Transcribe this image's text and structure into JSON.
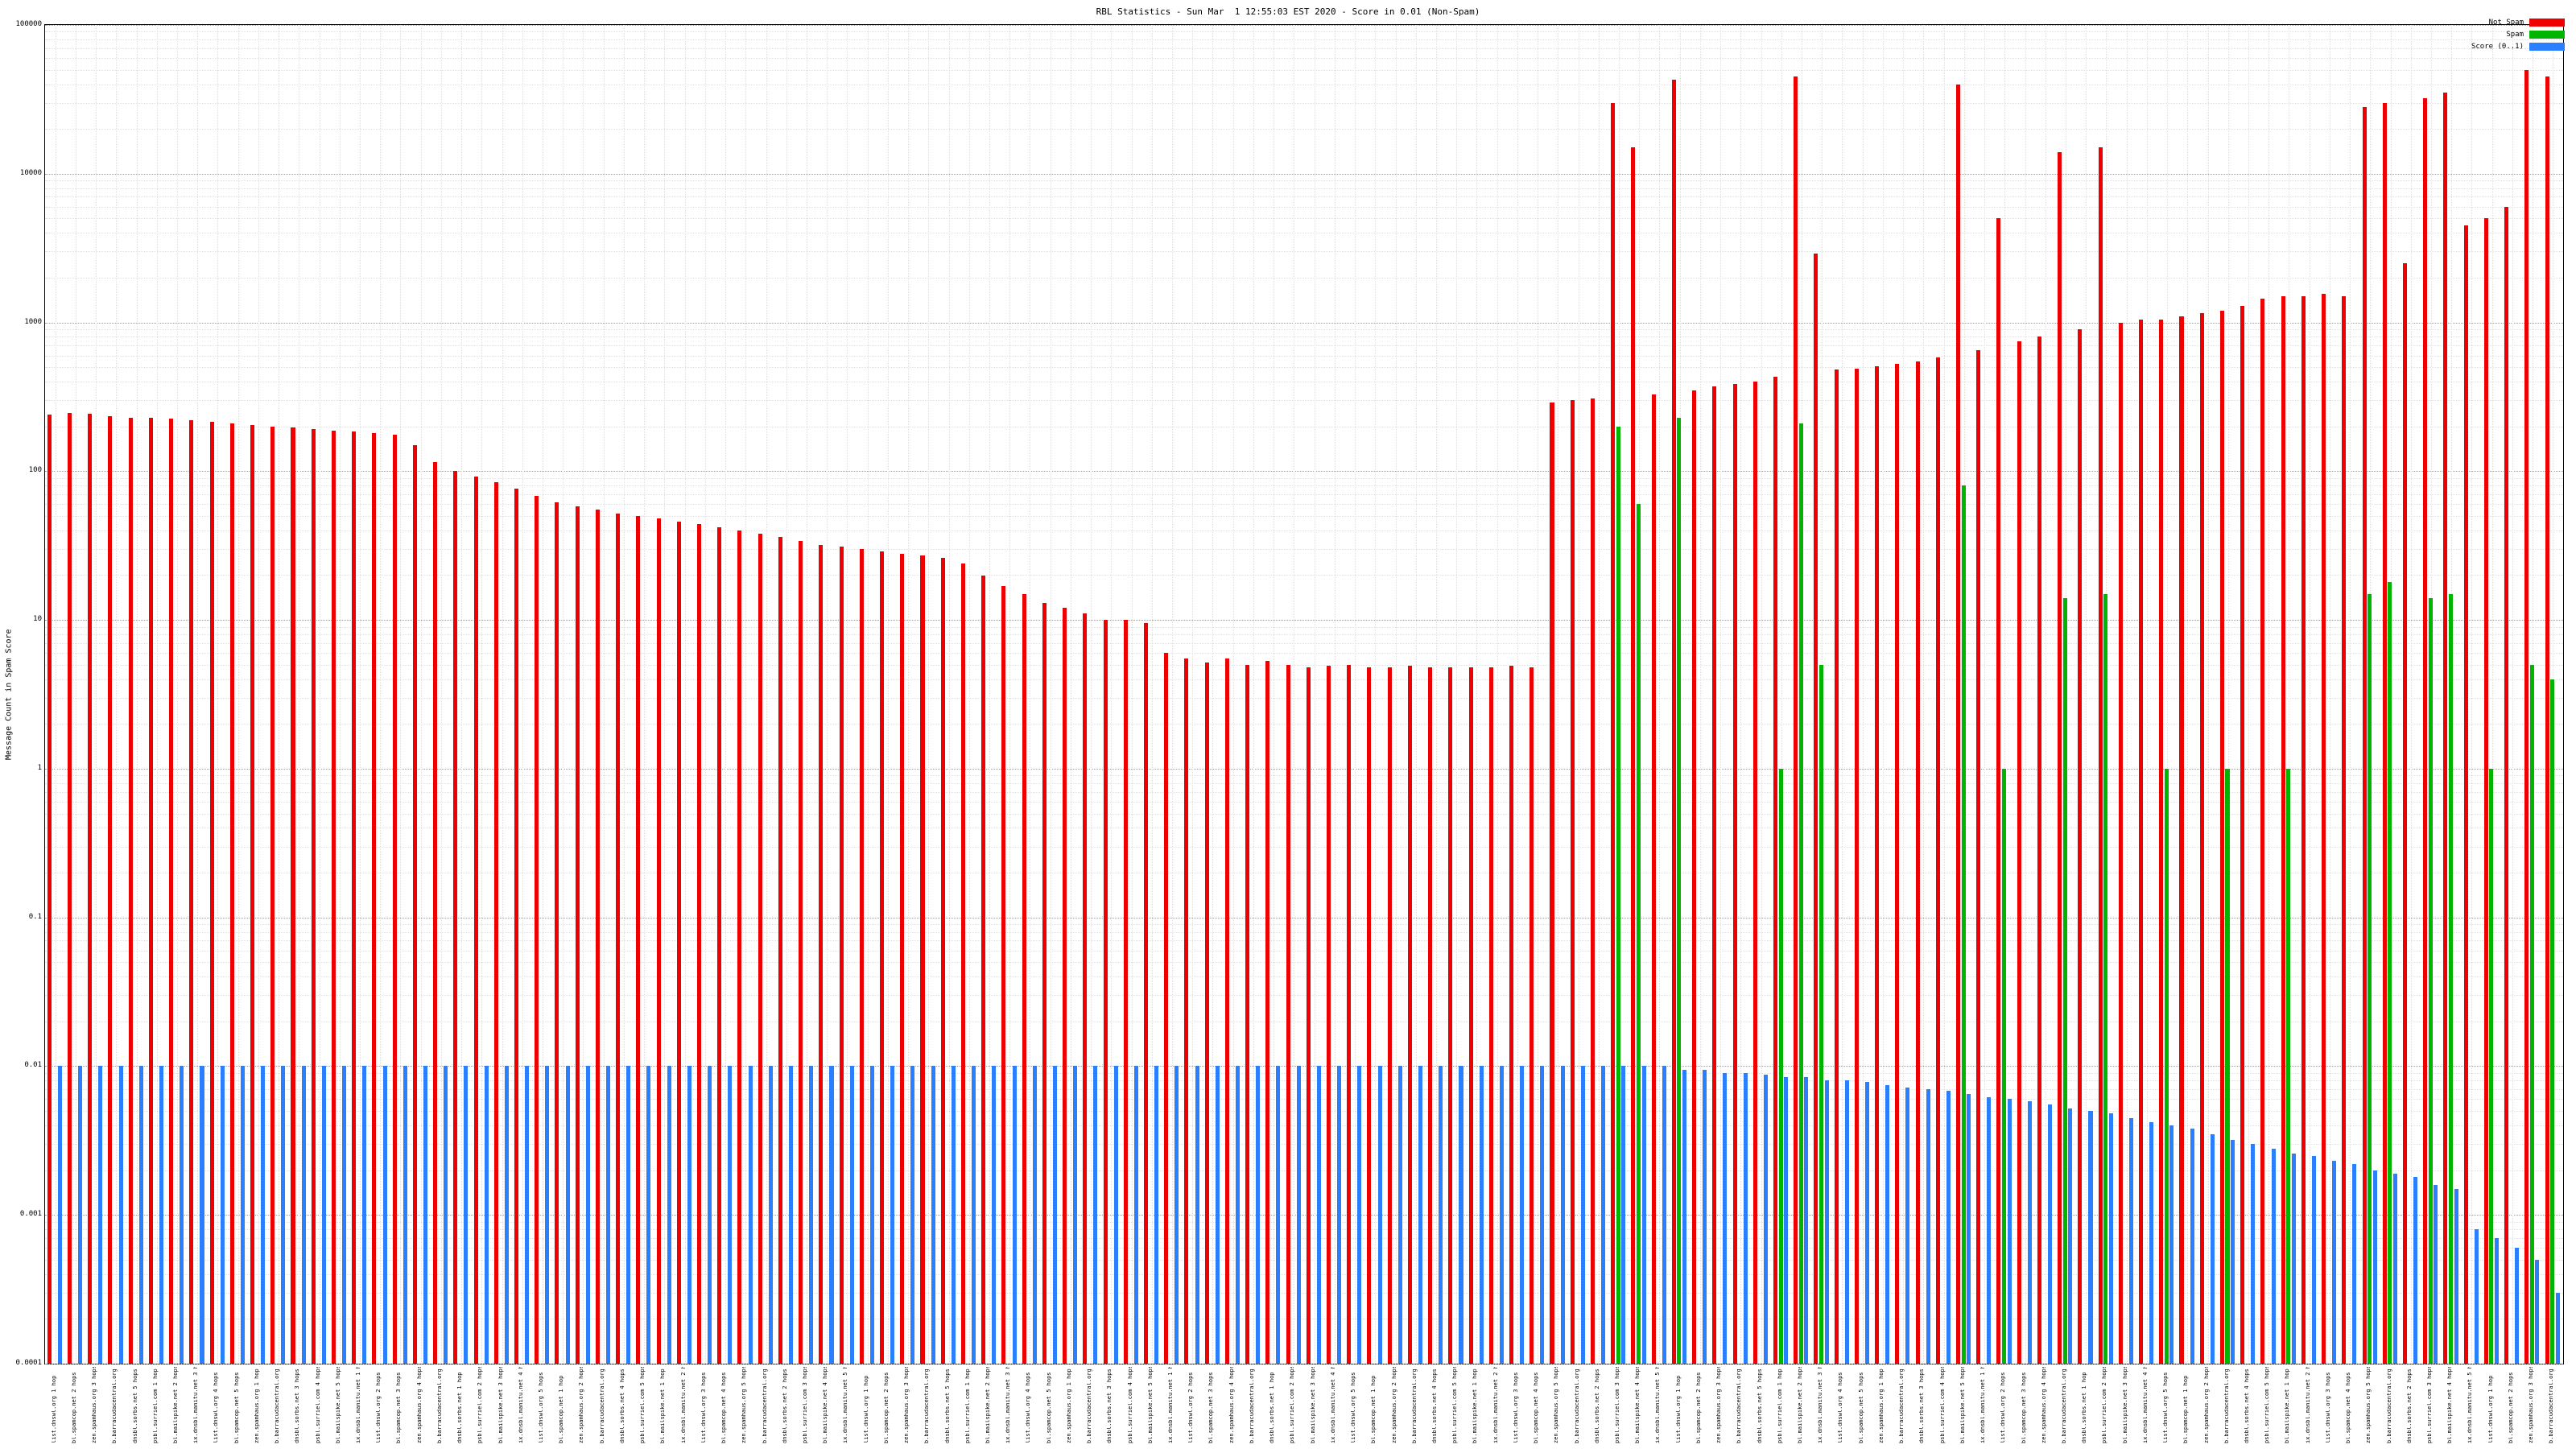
{
  "chart_data": {
    "type": "bar",
    "title": "RBL Statistics - Sun Mar  1 12:55:03 EST 2020 - Score in 0.01 (Non-Spam)",
    "ylabel": "Message Count in Spam Score",
    "xlabel": "",
    "scale": "log",
    "ylim": [
      0.0001,
      100000
    ],
    "yticks": [
      "0.0001",
      "0.001",
      "0.01",
      "0.1",
      "1",
      "10",
      "100",
      "1000",
      "10000",
      "100000"
    ],
    "grid": true,
    "legend_position": "top-right",
    "legend": [
      {
        "label": "Not Spam",
        "color": "#ee0000"
      },
      {
        "label": "Spam",
        "color": "#00b400"
      },
      {
        "label": "Score (0..1)",
        "color": "#2a7fff"
      }
    ],
    "categories": [
      "list.dnswl.org 1 hop",
      "bl.spamcop.net 2 hops",
      "zen.spamhaus.org 3 hops",
      "b.barracudacentral.org 4 hops",
      "dnsbl.sorbs.net 5 hops",
      "psbl.surriel.com 1 hop",
      "bl.mailspike.net 2 hops",
      "ix.dnsbl.manitu.net 3 hops",
      "list.dnswl.org 4 hops",
      "bl.spamcop.net 5 hops",
      "zen.spamhaus.org 1 hop",
      "b.barracudacentral.org 2 hops",
      "dnsbl.sorbs.net 3 hops",
      "psbl.surriel.com 4 hops",
      "bl.mailspike.net 5 hops",
      "ix.dnsbl.manitu.net 1 hop",
      "list.dnswl.org 2 hops",
      "bl.spamcop.net 3 hops",
      "zen.spamhaus.org 4 hops",
      "b.barracudacentral.org 5 hops",
      "dnsbl.sorbs.net 1 hop",
      "psbl.surriel.com 2 hops",
      "bl.mailspike.net 3 hops",
      "ix.dnsbl.manitu.net 4 hops",
      "list.dnswl.org 5 hops",
      "bl.spamcop.net 1 hop",
      "zen.spamhaus.org 2 hops",
      "b.barracudacentral.org 3 hops",
      "dnsbl.sorbs.net 4 hops",
      "psbl.surriel.com 5 hops",
      "bl.mailspike.net 1 hop",
      "ix.dnsbl.manitu.net 2 hops",
      "list.dnswl.org 3 hops",
      "bl.spamcop.net 4 hops",
      "zen.spamhaus.org 5 hops",
      "b.barracudacentral.org 1 hop",
      "dnsbl.sorbs.net 2 hops",
      "psbl.surriel.com 3 hops",
      "bl.mailspike.net 4 hops",
      "ix.dnsbl.manitu.net 5 hops",
      "list.dnswl.org 1 hop",
      "bl.spamcop.net 2 hops",
      "zen.spamhaus.org 3 hops",
      "b.barracudacentral.org 4 hops",
      "dnsbl.sorbs.net 5 hops",
      "psbl.surriel.com 1 hop",
      "bl.mailspike.net 2 hops",
      "ix.dnsbl.manitu.net 3 hops",
      "list.dnswl.org 4 hops",
      "bl.spamcop.net 5 hops",
      "zen.spamhaus.org 1 hop",
      "b.barracudacentral.org 2 hops",
      "dnsbl.sorbs.net 3 hops",
      "psbl.surriel.com 4 hops",
      "bl.mailspike.net 5 hops",
      "ix.dnsbl.manitu.net 1 hop",
      "list.dnswl.org 2 hops",
      "bl.spamcop.net 3 hops",
      "zen.spamhaus.org 4 hops",
      "b.barracudacentral.org 5 hops",
      "dnsbl.sorbs.net 1 hop",
      "psbl.surriel.com 2 hops",
      "bl.mailspike.net 3 hops",
      "ix.dnsbl.manitu.net 4 hops",
      "list.dnswl.org 5 hops",
      "bl.spamcop.net 1 hop",
      "zen.spamhaus.org 2 hops",
      "b.barracudacentral.org 3 hops",
      "dnsbl.sorbs.net 4 hops",
      "psbl.surriel.com 5 hops",
      "bl.mailspike.net 1 hop",
      "ix.dnsbl.manitu.net 2 hops",
      "list.dnswl.org 3 hops",
      "bl.spamcop.net 4 hops",
      "zen.spamhaus.org 5 hops",
      "b.barracudacentral.org 1 hop",
      "dnsbl.sorbs.net 2 hops",
      "psbl.surriel.com 3 hops",
      "bl.mailspike.net 4 hops",
      "ix.dnsbl.manitu.net 5 hops",
      "list.dnswl.org 1 hop",
      "bl.spamcop.net 2 hops",
      "zen.spamhaus.org 3 hops",
      "b.barracudacentral.org 4 hops",
      "dnsbl.sorbs.net 5 hops",
      "psbl.surriel.com 1 hop",
      "bl.mailspike.net 2 hops",
      "ix.dnsbl.manitu.net 3 hops",
      "list.dnswl.org 4 hops",
      "bl.spamcop.net 5 hops",
      "zen.spamhaus.org 1 hop",
      "b.barracudacentral.org 2 hops",
      "dnsbl.sorbs.net 3 hops",
      "psbl.surriel.com 4 hops",
      "bl.mailspike.net 5 hops",
      "ix.dnsbl.manitu.net 1 hop",
      "list.dnswl.org 2 hops",
      "bl.spamcop.net 3 hops",
      "zen.spamhaus.org 4 hops",
      "b.barracudacentral.org 5 hops",
      "dnsbl.sorbs.net 1 hop",
      "psbl.surriel.com 2 hops",
      "bl.mailspike.net 3 hops",
      "ix.dnsbl.manitu.net 4 hops",
      "list.dnswl.org 5 hops",
      "bl.spamcop.net 1 hop",
      "zen.spamhaus.org 2 hops",
      "b.barracudacentral.org 3 hops",
      "dnsbl.sorbs.net 4 hops",
      "psbl.surriel.com 5 hops",
      "bl.mailspike.net 1 hop",
      "ix.dnsbl.manitu.net 2 hops",
      "list.dnswl.org 3 hops",
      "bl.spamcop.net 4 hops",
      "zen.spamhaus.org 5 hops",
      "b.barracudacentral.org 1 hop",
      "dnsbl.sorbs.net 2 hops",
      "psbl.surriel.com 3 hops",
      "bl.mailspike.net 4 hops",
      "ix.dnsbl.manitu.net 5 hops",
      "list.dnswl.org 1 hop",
      "bl.spamcop.net 2 hops",
      "zen.spamhaus.org 3 hops",
      "b.barracudacentral.org 4 hops"
    ],
    "series": [
      {
        "name": "Not Spam",
        "color": "#ee0000",
        "values": [
          240,
          245,
          242,
          235,
          230,
          228,
          225,
          220,
          215,
          210,
          205,
          200,
          196,
          192,
          188,
          184,
          180,
          175,
          150,
          115,
          100,
          92,
          84,
          76,
          68,
          62,
          58,
          55,
          52,
          50,
          48,
          46,
          44,
          42,
          40,
          38,
          36,
          34,
          32,
          31,
          30,
          29,
          28,
          27,
          26,
          24,
          20,
          17,
          15,
          13,
          12,
          11,
          10,
          10,
          9.5,
          6,
          5.5,
          5.2,
          5.5,
          5,
          5.3,
          5,
          4.8,
          4.9,
          5,
          4.8,
          4.8,
          4.9,
          4.8,
          4.8,
          4.8,
          4.8,
          4.9,
          4.8,
          290,
          300,
          310,
          30000,
          15000,
          330,
          43000,
          350,
          370,
          385,
          400,
          430,
          45000,
          2900,
          480,
          490,
          510,
          530,
          550,
          580,
          40000,
          650,
          5000,
          750,
          800,
          14000,
          900,
          15000,
          1000,
          1050,
          1050,
          1100,
          1150,
          1200,
          1300,
          1450,
          1500,
          1500,
          1550,
          1500,
          28000,
          30000,
          2500,
          32000,
          35000,
          4500,
          5000,
          6000,
          50000,
          45000
        ]
      },
      {
        "name": "Spam",
        "color": "#00b400",
        "values": [
          0,
          0,
          0,
          0,
          0,
          0,
          0,
          0,
          0,
          0,
          0,
          0,
          0,
          0,
          0,
          0,
          0,
          0,
          0,
          0,
          0,
          0,
          0,
          0,
          0,
          0,
          0,
          0,
          0,
          0,
          0,
          0,
          0,
          0,
          0,
          0,
          0,
          0,
          0,
          0,
          0,
          0,
          0,
          0,
          0,
          0,
          0,
          0,
          0,
          0,
          0,
          0,
          0,
          0,
          0,
          0,
          0,
          0,
          0,
          0,
          0,
          0,
          0,
          0,
          0,
          0,
          0,
          0,
          0,
          0,
          0,
          0,
          0,
          0,
          0,
          0,
          0,
          200,
          60,
          0,
          230,
          0,
          0,
          0,
          0,
          1,
          210,
          5,
          0,
          0,
          0,
          0,
          0,
          0,
          80,
          0,
          1,
          0,
          0,
          14,
          0,
          15,
          0,
          0,
          1,
          0,
          0,
          1,
          0,
          0,
          1,
          0,
          0,
          0,
          15,
          18,
          0,
          14,
          15,
          0,
          1,
          0,
          5,
          4
        ]
      },
      {
        "name": "Score (0..1)",
        "color": "#2a7fff",
        "values": [
          0.01,
          0.01,
          0.01,
          0.01,
          0.01,
          0.01,
          0.01,
          0.01,
          0.01,
          0.01,
          0.01,
          0.01,
          0.01,
          0.01,
          0.01,
          0.01,
          0.01,
          0.01,
          0.01,
          0.01,
          0.01,
          0.01,
          0.01,
          0.01,
          0.01,
          0.01,
          0.01,
          0.01,
          0.01,
          0.01,
          0.01,
          0.01,
          0.01,
          0.01,
          0.01,
          0.01,
          0.01,
          0.01,
          0.01,
          0.01,
          0.01,
          0.01,
          0.01,
          0.01,
          0.01,
          0.01,
          0.01,
          0.01,
          0.01,
          0.01,
          0.01,
          0.01,
          0.01,
          0.01,
          0.01,
          0.01,
          0.01,
          0.01,
          0.01,
          0.01,
          0.01,
          0.01,
          0.01,
          0.01,
          0.01,
          0.01,
          0.01,
          0.01,
          0.01,
          0.01,
          0.01,
          0.01,
          0.01,
          0.01,
          0.01,
          0.01,
          0.01,
          0.01,
          0.01,
          0.01,
          0.0095,
          0.0095,
          0.009,
          0.009,
          0.0088,
          0.0085,
          0.0085,
          0.008,
          0.008,
          0.0078,
          0.0075,
          0.0072,
          0.007,
          0.0068,
          0.0065,
          0.0062,
          0.006,
          0.0058,
          0.0055,
          0.0052,
          0.005,
          0.0048,
          0.0045,
          0.0042,
          0.004,
          0.0038,
          0.0035,
          0.0032,
          0.003,
          0.0028,
          0.0026,
          0.0025,
          0.0023,
          0.0022,
          0.002,
          0.0019,
          0.0018,
          0.0016,
          0.0015,
          0.0008,
          0.0007,
          0.0006,
          0.0005,
          0.0003
        ]
      }
    ]
  }
}
